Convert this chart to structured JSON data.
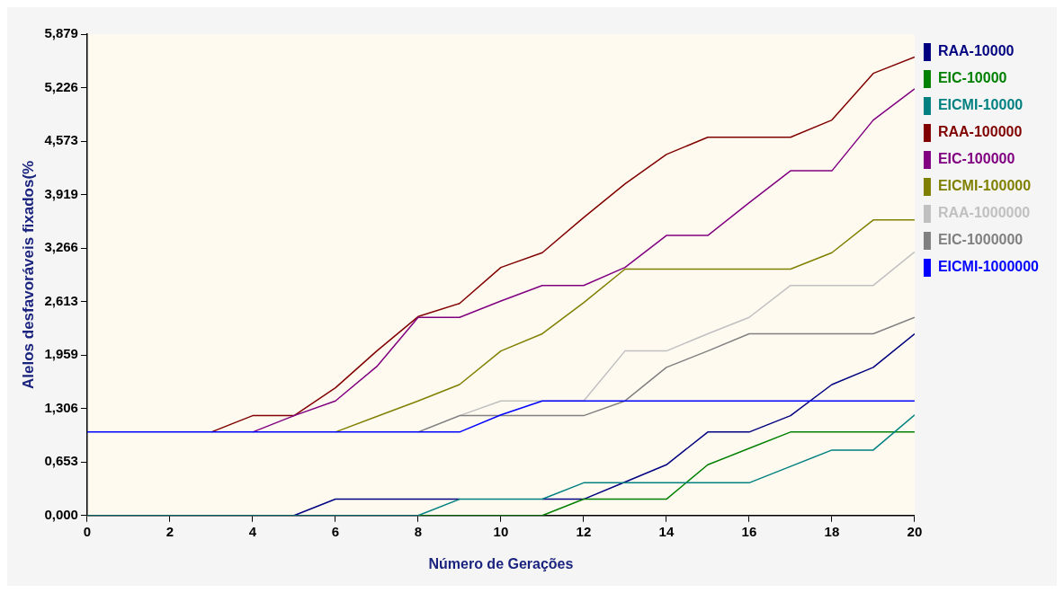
{
  "chart_data": {
    "type": "line",
    "xlabel": "Número de Gerações",
    "ylabel": "Alelos desfavoráveis fixados(%",
    "x": [
      0,
      1,
      2,
      3,
      4,
      5,
      6,
      7,
      8,
      9,
      10,
      11,
      12,
      13,
      14,
      15,
      16,
      17,
      18,
      19,
      20
    ],
    "xlim": [
      0,
      20
    ],
    "xticks": [
      0,
      2,
      4,
      6,
      8,
      10,
      12,
      14,
      16,
      18,
      20
    ],
    "ylim": [
      0,
      5.879
    ],
    "yticks": [
      {
        "value": 0,
        "label": "0,000"
      },
      {
        "value": 0.653,
        "label": "0,653"
      },
      {
        "value": 1.306,
        "label": "1,306"
      },
      {
        "value": 1.959,
        "label": "1,959"
      },
      {
        "value": 2.613,
        "label": "2,613"
      },
      {
        "value": 3.266,
        "label": "3,266"
      },
      {
        "value": 3.919,
        "label": "3,919"
      },
      {
        "value": 4.573,
        "label": "4,573"
      },
      {
        "value": 5.226,
        "label": "5,226"
      },
      {
        "value": 5.879,
        "label": "5,879"
      }
    ],
    "grid": false,
    "legend": "right",
    "marker": "none",
    "line_style": "solid",
    "series": [
      {
        "name": "RAA-10000",
        "color": "#000080",
        "values": [
          null,
          null,
          null,
          null,
          null,
          0,
          0.2,
          0.2,
          0.2,
          0.2,
          null,
          0.2,
          0.2,
          0.41,
          0.62,
          1.02,
          1.02,
          1.22,
          1.6,
          1.81,
          2.22
        ]
      },
      {
        "name": "EIC-10000",
        "color": "#008000",
        "values": [
          null,
          null,
          null,
          null,
          null,
          null,
          null,
          null,
          0,
          0,
          0,
          0,
          0.2,
          0.2,
          0.2,
          0.62,
          0.82,
          1.02,
          1.02,
          1.02,
          1.02
        ]
      },
      {
        "name": "EICMI-10000",
        "color": "#008080",
        "values": [
          0,
          0,
          0,
          0,
          0,
          0,
          0,
          0,
          0,
          0.2,
          0.2,
          0.2,
          0.4,
          0.4,
          0.4,
          0.4,
          0.4,
          0.6,
          0.8,
          0.8,
          1.23
        ]
      },
      {
        "name": "RAA-100000",
        "color": "#800000",
        "values": [
          null,
          null,
          null,
          1.02,
          1.22,
          1.22,
          1.56,
          2.01,
          2.43,
          2.59,
          3.03,
          3.21,
          3.64,
          4.05,
          4.41,
          4.62,
          4.62,
          4.62,
          4.83,
          5.4,
          5.6
        ]
      },
      {
        "name": "EIC-100000",
        "color": "#800080",
        "values": [
          null,
          null,
          null,
          null,
          1.02,
          1.22,
          1.4,
          1.82,
          2.42,
          2.42,
          2.62,
          2.81,
          2.81,
          3.03,
          3.42,
          3.42,
          3.82,
          4.21,
          4.21,
          4.83,
          5.21
        ]
      },
      {
        "name": "EICMI-100000",
        "color": "#808000",
        "values": [
          null,
          null,
          null,
          null,
          null,
          null,
          1.02,
          1.21,
          1.4,
          1.6,
          2.01,
          2.22,
          2.6,
          3.01,
          3.01,
          3.01,
          3.01,
          3.01,
          3.21,
          3.61,
          3.61
        ]
      },
      {
        "name": "RAA-1000000",
        "color": "#c0c0c0",
        "values": [
          null,
          null,
          null,
          null,
          null,
          null,
          null,
          null,
          1.02,
          1.22,
          1.4,
          1.4,
          1.4,
          2.01,
          2.01,
          2.22,
          2.42,
          2.81,
          2.81,
          2.81,
          3.22
        ]
      },
      {
        "name": "EIC-1000000",
        "color": "#808080",
        "values": [
          null,
          null,
          null,
          null,
          null,
          null,
          null,
          null,
          1.02,
          1.22,
          1.22,
          1.22,
          1.22,
          1.4,
          1.81,
          2.01,
          2.22,
          2.22,
          2.22,
          2.22,
          2.42
        ]
      },
      {
        "name": "EICMI-1000000",
        "color": "#0000ff",
        "values": [
          1.02,
          1.02,
          1.02,
          1.02,
          1.02,
          1.02,
          1.02,
          1.02,
          1.02,
          1.02,
          1.23,
          1.4,
          1.4,
          1.4,
          1.4,
          1.4,
          1.4,
          1.4,
          1.4,
          1.4,
          1.4
        ]
      }
    ]
  }
}
